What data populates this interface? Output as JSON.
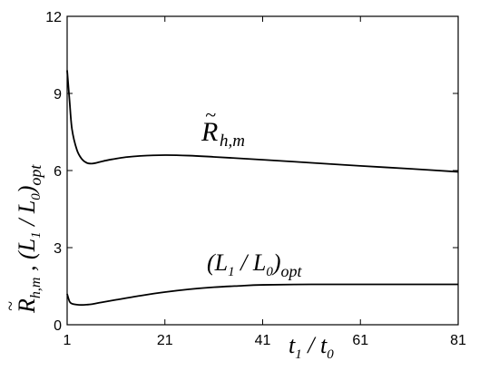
{
  "chart_data": {
    "type": "line",
    "xlim": [
      1,
      81
    ],
    "ylim": [
      0,
      12
    ],
    "x_ticks": [
      "1",
      "21",
      "41",
      "61",
      "81"
    ],
    "y_ticks": [
      "0",
      "3",
      "6",
      "9",
      "12"
    ],
    "xlabel": "t1 / t0",
    "ylabel": "R̃h,m , (L1 / L0)opt",
    "grid": false,
    "series": [
      {
        "name": "R̃h,m",
        "x": [
          1,
          1.5,
          2,
          3,
          4,
          5,
          6,
          7,
          8,
          10,
          13,
          16,
          21,
          26,
          31,
          41,
          51,
          61,
          71,
          81
        ],
        "y": [
          9.9,
          8.7,
          7.6,
          6.8,
          6.45,
          6.3,
          6.27,
          6.3,
          6.35,
          6.43,
          6.52,
          6.57,
          6.6,
          6.58,
          6.53,
          6.42,
          6.3,
          6.18,
          6.07,
          5.95
        ]
      },
      {
        "name": "(L1 / L0)opt",
        "x": [
          1,
          1.5,
          2,
          3,
          4,
          5,
          6,
          8,
          11,
          16,
          21,
          26,
          31,
          36,
          41,
          51,
          61,
          71,
          81
        ],
        "y": [
          1.2,
          0.9,
          0.82,
          0.78,
          0.77,
          0.78,
          0.8,
          0.87,
          0.97,
          1.13,
          1.27,
          1.38,
          1.46,
          1.51,
          1.55,
          1.57,
          1.57,
          1.57,
          1.57
        ]
      }
    ]
  },
  "annotations": {
    "rh_base": "R",
    "rh_tilde": "~",
    "rh_sub": "h,m",
    "l_open": "(L",
    "l_sub1": "1",
    "l_mid": " / L",
    "l_sub0": "0",
    "l_close": ")",
    "l_sub_opt": "opt"
  },
  "axis_title_parts": {
    "x_t": "t",
    "x_sub1": "1",
    "x_mid": " / t",
    "x_sub0": "0",
    "y_r": "R",
    "y_tilde": "~",
    "y_sub_hm": "h,m",
    "y_comma": " , (L",
    "y_sub1": "1",
    "y_mid": " / L",
    "y_sub0": "0",
    "y_close": ")",
    "y_sub_opt": "opt"
  }
}
